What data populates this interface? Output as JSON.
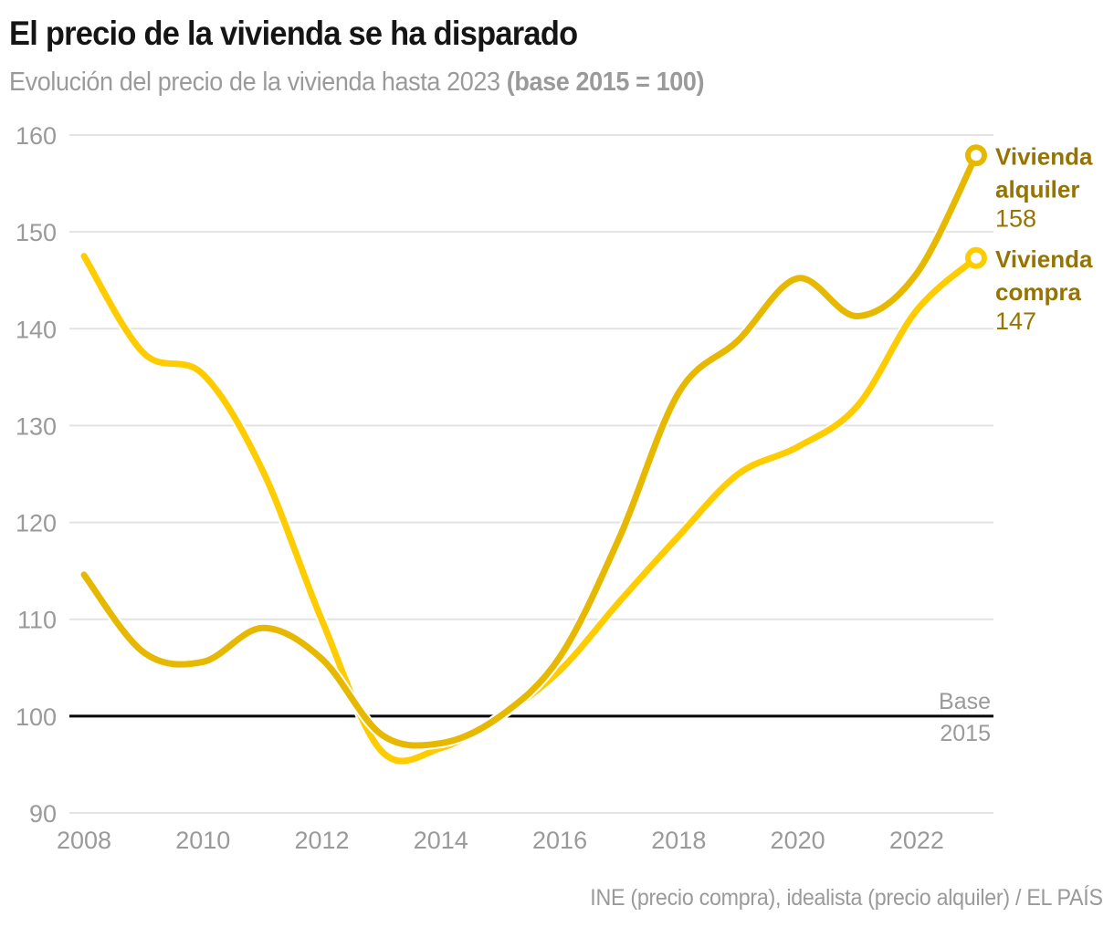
{
  "header": {
    "title": "El precio de la vivienda se ha disparado",
    "subtitle_prefix": "Evolución del precio de la vivienda hasta 2023 ",
    "subtitle_bold": "(base 2015 = 100)"
  },
  "source": "INE (precio compra), idealista (precio alquiler) / EL PAÍS",
  "chart_data": {
    "type": "line",
    "title": "El precio de la vivienda se ha disparado",
    "subtitle": "Evolución del precio de la vivienda hasta 2023 (base 2015 = 100)",
    "xlabel": "",
    "ylabel": "",
    "x": [
      2008,
      2009,
      2010,
      2011,
      2012,
      2013,
      2014,
      2015,
      2016,
      2017,
      2018,
      2019,
      2020,
      2021,
      2022,
      2023
    ],
    "xlim": [
      2008,
      2023
    ],
    "ylim": [
      90,
      160
    ],
    "x_ticks": [
      "2008",
      "2010",
      "2012",
      "2014",
      "2016",
      "2018",
      "2020",
      "2022"
    ],
    "x_tick_values": [
      2008,
      2010,
      2012,
      2014,
      2016,
      2018,
      2020,
      2022
    ],
    "y_ticks": [
      "160",
      "150",
      "140",
      "130",
      "120",
      "110",
      "100",
      "90"
    ],
    "y_tick_values": [
      160,
      150,
      140,
      130,
      120,
      110,
      100,
      90
    ],
    "grid": true,
    "legend": "direct labels at line ends (right)",
    "baseline": {
      "value": 100,
      "label_top": "Base",
      "label_bottom": "2015",
      "color": "#000000"
    },
    "series": [
      {
        "name": "Vivienda compra",
        "label_line1": "Vivienda",
        "label_line2": "compra",
        "end_value_label": "147",
        "color": "#FFCC00",
        "values": [
          147.5,
          137.5,
          135.3,
          125.4,
          109.9,
          96.4,
          96.7,
          100.0,
          104.7,
          111.8,
          118.6,
          125.0,
          127.8,
          132.0,
          141.9,
          147.3
        ]
      },
      {
        "name": "Vivienda alquiler",
        "label_line1": "Vivienda",
        "label_line2": "alquiler",
        "end_value_label": "158",
        "color": "#E6B800",
        "values": [
          114.6,
          106.6,
          105.6,
          109.1,
          105.9,
          98.1,
          97.2,
          100.0,
          106.1,
          118.4,
          133.4,
          138.8,
          145.2,
          141.3,
          145.7,
          157.9
        ]
      }
    ],
    "label_color": "#957400"
  }
}
